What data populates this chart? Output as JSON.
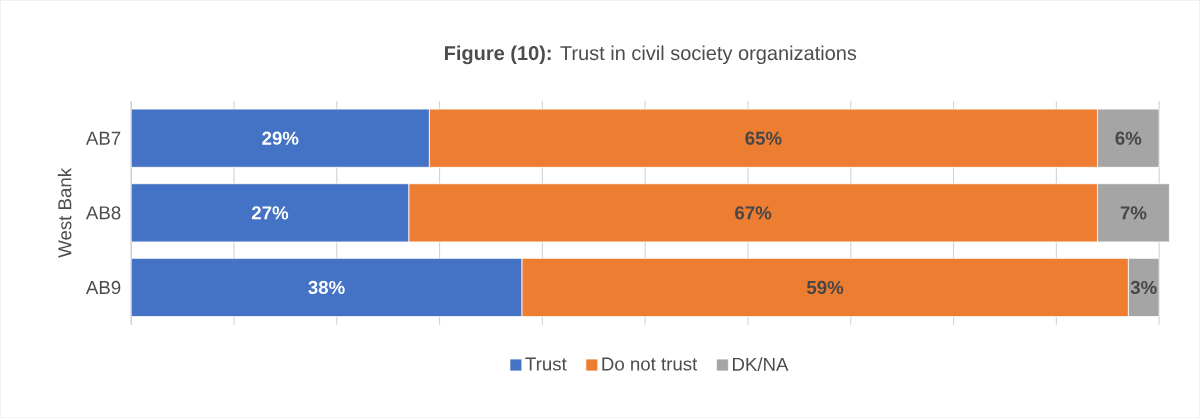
{
  "chart_data": {
    "type": "bar",
    "orientation": "horizontal",
    "stacked": true,
    "title": "**Figure (10):** Trust in civil society organizations",
    "ylabel": "West Bank",
    "categories": [
      "AB7",
      "AB8",
      "AB9"
    ],
    "series": [
      {
        "name": "Trust",
        "color": "#4472c4",
        "values": [
          29,
          27,
          38
        ],
        "value_labels": [
          "29%",
          "27%",
          "38%"
        ]
      },
      {
        "name": "Do not trust",
        "color": "#ed7d31",
        "values": [
          65,
          67,
          59
        ],
        "value_labels": [
          "65%",
          "67%",
          "59%"
        ]
      },
      {
        "name": "DK/NA",
        "color": "#a5a5a5",
        "values": [
          6,
          7,
          3
        ],
        "value_labels": [
          "6%",
          "7%",
          "3%"
        ]
      }
    ],
    "xlim": [
      0,
      101
    ],
    "xticks": [
      {
        "value": 0,
        "label": null
      },
      {
        "value": 10,
        "label": null
      },
      {
        "value": 20,
        "label": null
      },
      {
        "value": 30,
        "label": null
      },
      {
        "value": 40,
        "label": null
      },
      {
        "value": 50,
        "label": null
      },
      {
        "value": 60,
        "label": null
      },
      {
        "value": 70,
        "label": null
      },
      {
        "value": 80,
        "label": null
      },
      {
        "value": 90,
        "label": null
      },
      {
        "value": 100,
        "label": null
      }
    ],
    "grid": "x",
    "legend": "bottom",
    "tick_labels": "y"
  }
}
